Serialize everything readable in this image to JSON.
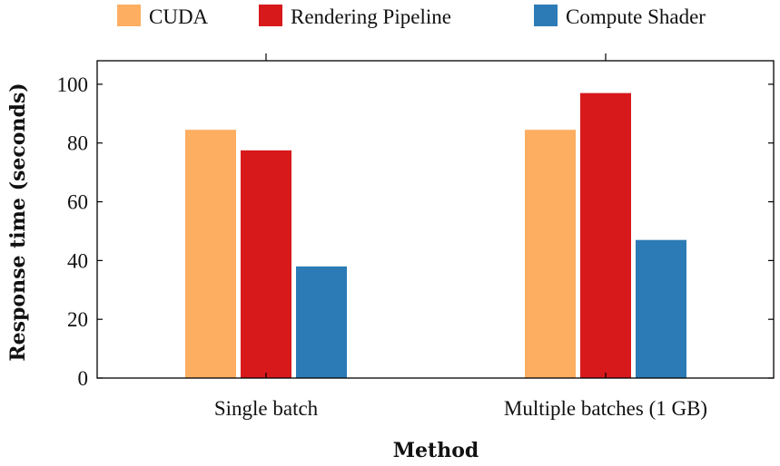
{
  "chart_data": {
    "type": "bar",
    "title": "",
    "xlabel": "Method",
    "ylabel": "Response time (seconds)",
    "categories": [
      "Single batch",
      "Multiple batches (1 GB)"
    ],
    "series": [
      {
        "name": "CUDA",
        "color": "#fdae61",
        "values": [
          84.5,
          84.5
        ]
      },
      {
        "name": "Rendering Pipeline",
        "color": "#d7191c",
        "values": [
          77.5,
          97
        ]
      },
      {
        "name": "Compute Shader",
        "color": "#2c7bb6",
        "values": [
          38,
          47
        ]
      }
    ],
    "ylim": [
      0,
      108
    ],
    "yticks": [
      0,
      20,
      40,
      60,
      80,
      100
    ],
    "grid": false,
    "legend_position": "top-center"
  }
}
